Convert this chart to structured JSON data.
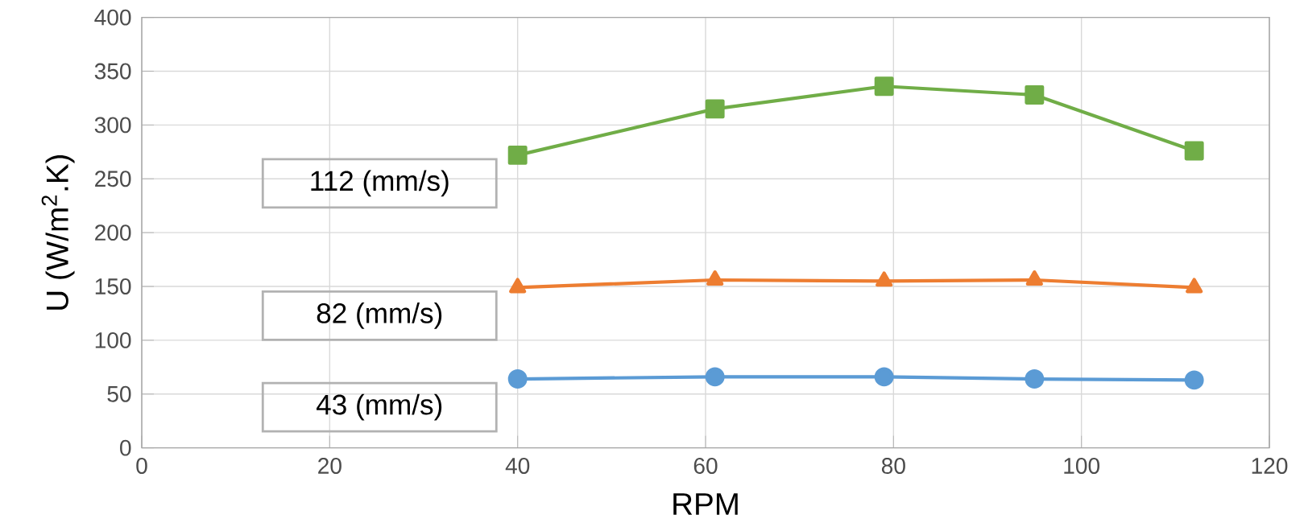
{
  "chart_data": {
    "type": "line",
    "xlabel": "RPM",
    "ylabel": "U (W/m$^{2}$.K)",
    "xlim": [
      0,
      120
    ],
    "ylim": [
      0,
      400
    ],
    "xticks": [
      0,
      20,
      40,
      60,
      80,
      100,
      120
    ],
    "yticks": [
      0,
      50,
      100,
      150,
      200,
      250,
      300,
      350,
      400
    ],
    "grid": true,
    "x": [
      40,
      61,
      79,
      95,
      112
    ],
    "series": [
      {
        "name": "112 (mm/s)",
        "color": "#70ad47",
        "marker": "square",
        "values": [
          272,
          315,
          336,
          328,
          276
        ]
      },
      {
        "name": "82 (mm/s)",
        "color": "#ed7d31",
        "marker": "triangle",
        "values": [
          149,
          156,
          155,
          156,
          149
        ]
      },
      {
        "name": "43 (mm/s)",
        "color": "#5b9bd5",
        "marker": "circle",
        "values": [
          64,
          66,
          66,
          64,
          63
        ]
      }
    ]
  }
}
